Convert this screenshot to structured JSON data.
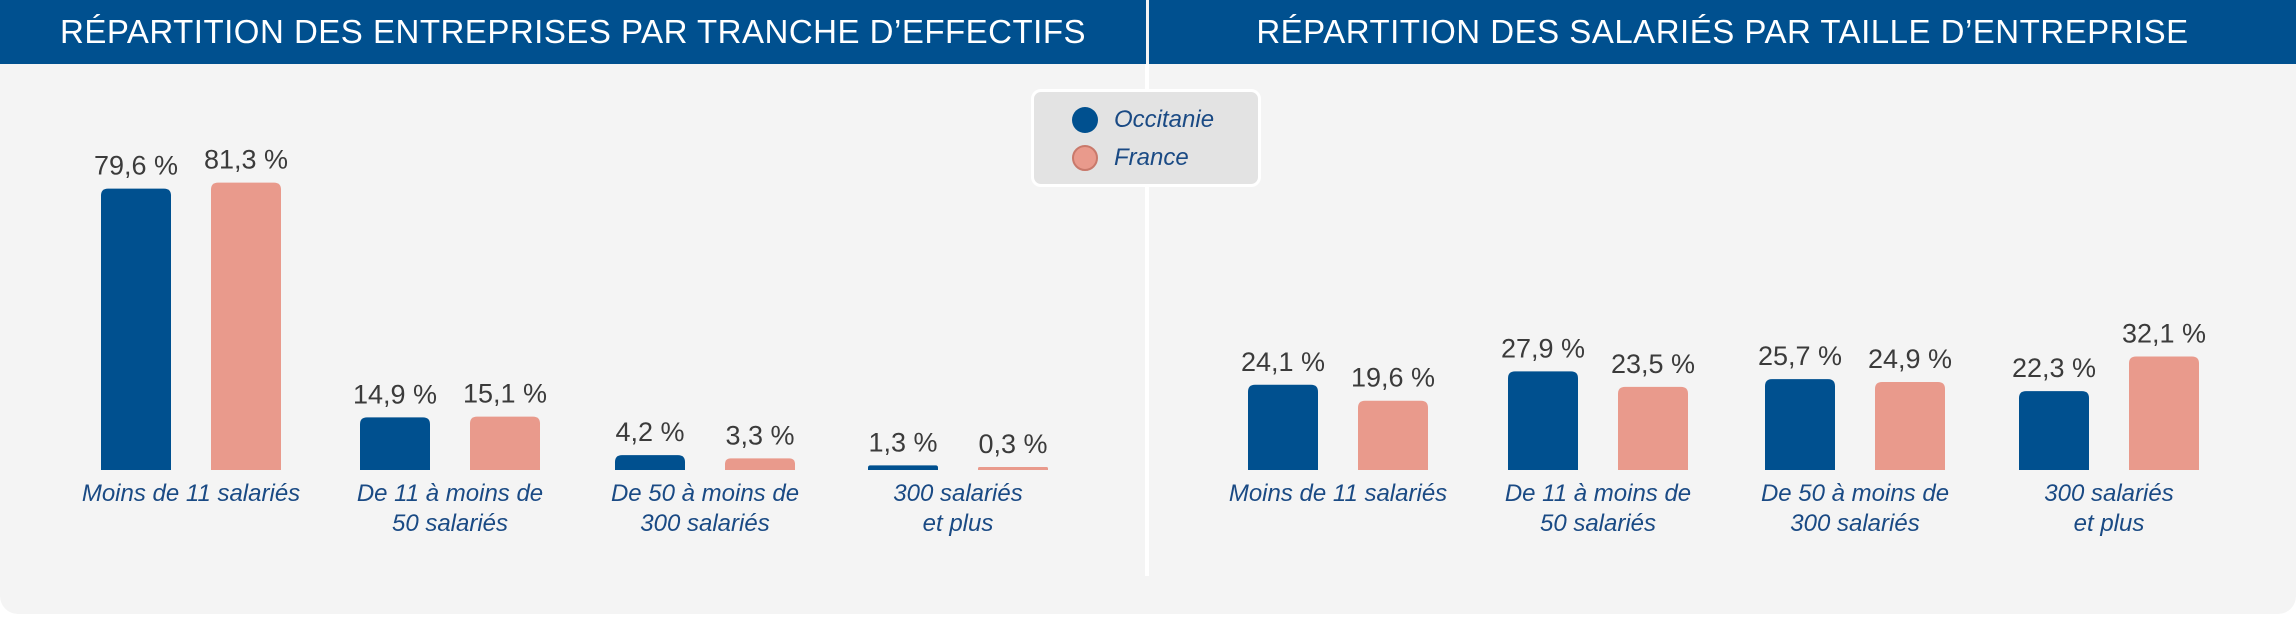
{
  "colors": {
    "header": "#00508f",
    "occitanie": "#00508f",
    "france": "#e99a8c",
    "label": "#3b3b3b",
    "category": "#1a4a84"
  },
  "legend": {
    "items": [
      {
        "name": "Occitanie",
        "color": "#00508f"
      },
      {
        "name": "France",
        "color": "#e99a8c"
      }
    ]
  },
  "chart_data": [
    {
      "type": "bar",
      "title": "RÉPARTITION DES ENTREPRISES PAR TRANCHE D’EFFECTIFS",
      "categories": [
        [
          "Moins de 11 salariés"
        ],
        [
          "De 11 à moins de",
          "50 salariés"
        ],
        [
          "De 50 à moins de",
          "300 salariés"
        ],
        [
          "300 salariés",
          "et plus"
        ]
      ],
      "series": [
        {
          "name": "Occitanie",
          "values": [
            79.6,
            14.9,
            4.2,
            1.3
          ],
          "labels": [
            "79,6 %",
            "14,9 %",
            "4,2 %",
            "1,3 %"
          ]
        },
        {
          "name": "France",
          "values": [
            81.3,
            15.1,
            3.3,
            0.3
          ],
          "labels": [
            "81,3 %",
            "15,1 %",
            "3,3 %",
            "0,3 %"
          ]
        }
      ],
      "ylim": [
        0,
        100
      ],
      "grid": false,
      "legend": "top-center"
    },
    {
      "type": "bar",
      "title": "RÉPARTITION DES SALARIÉS PAR TAILLE D’ENTREPRISE",
      "categories": [
        [
          "Moins de 11 salariés"
        ],
        [
          "De 11 à moins de",
          "50 salariés"
        ],
        [
          "De 50 à moins de",
          "300 salariés"
        ],
        [
          "300 salariés",
          "et plus"
        ]
      ],
      "series": [
        {
          "name": "Occitanie",
          "values": [
            24.1,
            27.9,
            25.7,
            22.3
          ],
          "labels": [
            "24,1 %",
            "27,9 %",
            "25,7 %",
            "22,3 %"
          ]
        },
        {
          "name": "France",
          "values": [
            19.6,
            23.5,
            24.9,
            32.1
          ],
          "labels": [
            "19,6 %",
            "23,5 %",
            "24,9 %",
            "32,1 %"
          ]
        }
      ],
      "ylim": [
        0,
        100
      ],
      "grid": false,
      "legend": "top-center"
    }
  ]
}
